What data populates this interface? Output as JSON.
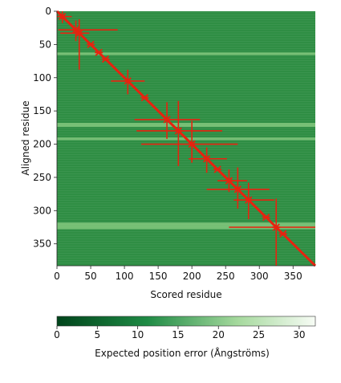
{
  "chart_data": {
    "type": "heatmap",
    "title": "",
    "xlabel": "Scored residue",
    "ylabel": "Aligned residue",
    "xlim": [
      0,
      383
    ],
    "ylim": [
      0,
      383
    ],
    "y_inverted": true,
    "xticks": [
      0,
      50,
      100,
      150,
      200,
      250,
      300,
      350
    ],
    "yticks": [
      0,
      50,
      100,
      150,
      200,
      250,
      300,
      350
    ],
    "colorbar": {
      "label": "Expected position error (Ångströms)",
      "range": [
        0,
        32
      ],
      "ticks": [
        0,
        5,
        10,
        15,
        20,
        25,
        30
      ],
      "colors": [
        "#00441b",
        "#1f8b45",
        "#a5d99d",
        "#f7fcf5"
      ]
    },
    "diagonal_color": "#e8220f",
    "light_row_bands": [
      {
        "from": 62,
        "to": 66
      },
      {
        "from": 168,
        "to": 174
      },
      {
        "from": 190,
        "to": 194
      },
      {
        "from": 318,
        "to": 328
      }
    ],
    "crosshairs": [
      {
        "x": 8,
        "y": 8,
        "h": [
          0,
          22
        ],
        "v": [
          0,
          18
        ]
      },
      {
        "x": 28,
        "y": 28,
        "h": [
          2,
          90
        ],
        "v": [
          14,
          45
        ]
      },
      {
        "x": 33,
        "y": 33,
        "h": [
          5,
          48
        ],
        "v": [
          12,
          88
        ]
      },
      {
        "x": 50,
        "y": 50
      },
      {
        "x": 62,
        "y": 62
      },
      {
        "x": 72,
        "y": 72
      },
      {
        "x": 105,
        "y": 105,
        "h": [
          80,
          130
        ],
        "v": [
          88,
          125
        ]
      },
      {
        "x": 130,
        "y": 130
      },
      {
        "x": 163,
        "y": 163,
        "h": [
          115,
          212
        ],
        "v": [
          137,
          192
        ]
      },
      {
        "x": 180,
        "y": 180,
        "h": [
          118,
          245
        ],
        "v": [
          135,
          233
        ]
      },
      {
        "x": 200,
        "y": 200,
        "h": [
          125,
          268
        ],
        "v": [
          165,
          228
        ]
      },
      {
        "x": 222,
        "y": 222,
        "h": [
          195,
          252
        ],
        "v": [
          205,
          243
        ]
      },
      {
        "x": 238,
        "y": 238
      },
      {
        "x": 255,
        "y": 255,
        "h": [
          238,
          282
        ],
        "v": [
          238,
          272
        ]
      },
      {
        "x": 268,
        "y": 268,
        "h": [
          222,
          315
        ],
        "v": [
          235,
          297
        ]
      },
      {
        "x": 284,
        "y": 284,
        "h": [
          262,
          322
        ],
        "v": [
          258,
          313
        ]
      },
      {
        "x": 310,
        "y": 310
      },
      {
        "x": 325,
        "y": 325,
        "h": [
          255,
          383
        ],
        "v": [
          282,
          383
        ]
      },
      {
        "x": 335,
        "y": 335
      }
    ]
  }
}
